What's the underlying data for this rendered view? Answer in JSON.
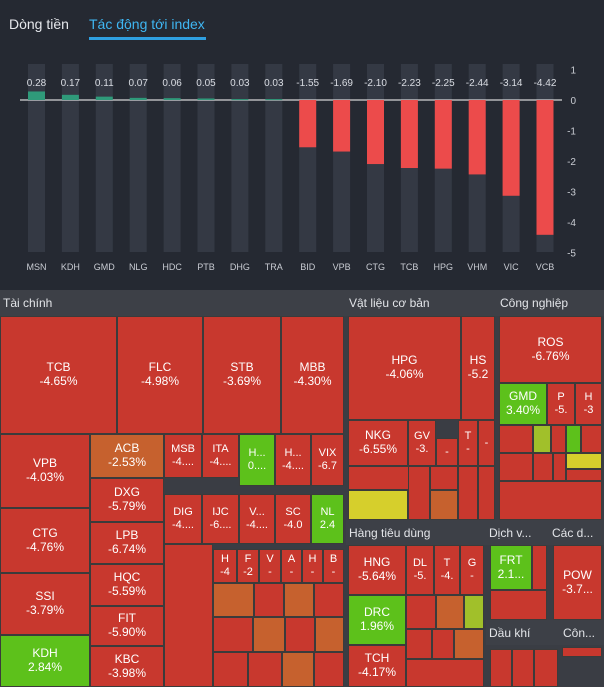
{
  "tabs": [
    {
      "label": "Dòng tiền",
      "active": false
    },
    {
      "label": "Tác động tới index",
      "active": true
    }
  ],
  "chart_data": {
    "type": "bar",
    "title": "Tác động tới index",
    "categories": [
      "MSN",
      "KDH",
      "GMD",
      "NLG",
      "HDC",
      "PTB",
      "DHG",
      "TRA",
      "BID",
      "VPB",
      "CTG",
      "TCB",
      "HPG",
      "VHM",
      "VIC",
      "VCB"
    ],
    "values": [
      0.28,
      0.17,
      0.11,
      0.07,
      0.06,
      0.05,
      0.03,
      0.03,
      -1.55,
      -1.69,
      -2.1,
      -2.23,
      -2.25,
      -2.44,
      -3.14,
      -4.42
    ],
    "value_labels": [
      "0.28",
      "0.17",
      "0.11",
      "0.07",
      "0.06",
      "0.05",
      "0.03",
      "0.03",
      "-1.55",
      "-1.69",
      "-2.10",
      "-2.23",
      "-2.25",
      "-2.44",
      "-3.14",
      "-4.42"
    ],
    "ylim": [
      -5,
      1
    ],
    "yticks": [
      1,
      0,
      -1,
      -2,
      -3,
      -4,
      -5
    ],
    "colors": {
      "positive": "#2f9a7a",
      "negative": "#ec4b4b",
      "track": "#343944"
    }
  },
  "treemap": {
    "sectors": {
      "finance": "Tài chính",
      "materials": "Vật liệu cơ bản",
      "industrial": "Công nghiệp",
      "consumer": "Hàng tiêu dùng",
      "services": "Dịch v...",
      "other": "Các d...",
      "oil": "Dầu khí",
      "tech": "Côn..."
    },
    "tickers": {
      "TCB": {
        "sym": "TCB",
        "chg": "-4.65%"
      },
      "FLC": {
        "sym": "FLC",
        "chg": "-4.98%"
      },
      "STB": {
        "sym": "STB",
        "chg": "-3.69%"
      },
      "MBB": {
        "sym": "MBB",
        "chg": "-4.30%"
      },
      "VPB": {
        "sym": "VPB",
        "chg": "-4.03%"
      },
      "ACB": {
        "sym": "ACB",
        "chg": "-2.53%"
      },
      "DXG": {
        "sym": "DXG",
        "chg": "-5.79%"
      },
      "LPB": {
        "sym": "LPB",
        "chg": "-6.74%"
      },
      "HQC": {
        "sym": "HQC",
        "chg": "-5.59%"
      },
      "FIT": {
        "sym": "FIT",
        "chg": "-5.90%"
      },
      "KBC": {
        "sym": "KBC",
        "chg": "-3.98%"
      },
      "CTG": {
        "sym": "CTG",
        "chg": "-4.76%"
      },
      "SSI": {
        "sym": "SSI",
        "chg": "-3.79%"
      },
      "KDH": {
        "sym": "KDH",
        "chg": "2.84%"
      },
      "MSB": {
        "sym": "MSB",
        "chg": "-4...."
      },
      "ITA": {
        "sym": "ITA",
        "chg": "-4...."
      },
      "HGREEN": {
        "sym": "H...",
        "chg": "0...."
      },
      "HRED": {
        "sym": "H...",
        "chg": "-4...."
      },
      "VIX": {
        "sym": "VIX",
        "chg": "-6.7"
      },
      "DIG": {
        "sym": "DIG",
        "chg": "-4...."
      },
      "IJC": {
        "sym": "IJC",
        "chg": "-6...."
      },
      "VDOT": {
        "sym": "V...",
        "chg": "-4...."
      },
      "SC": {
        "sym": "SC",
        "chg": "-4.0"
      },
      "NL": {
        "sym": "NL",
        "chg": "2.4"
      },
      "H4": {
        "sym": "H",
        "chg": "-4"
      },
      "F": {
        "sym": "F",
        "chg": "-2"
      },
      "V": {
        "sym": "V",
        "chg": "-"
      },
      "A": {
        "sym": "A",
        "chg": "-"
      },
      "H": {
        "sym": "H",
        "chg": "-"
      },
      "B": {
        "sym": "B",
        "chg": "-"
      },
      "HPG": {
        "sym": "HPG",
        "chg": "-4.06%"
      },
      "HS": {
        "sym": "HS",
        "chg": "-5.2"
      },
      "NKG": {
        "sym": "NKG",
        "chg": "-6.55%"
      },
      "GV": {
        "sym": "GV",
        "chg": "-3."
      },
      "DASH": {
        "sym": "-",
        "chg": ""
      },
      "T": {
        "sym": "T",
        "chg": "-"
      },
      "DASH2": {
        "sym": "-",
        "chg": ""
      },
      "ROS": {
        "sym": "ROS",
        "chg": "-6.76%"
      },
      "GMD": {
        "sym": "GMD",
        "chg": "3.40%"
      },
      "P": {
        "sym": "P",
        "chg": "-5."
      },
      "H3": {
        "sym": "H",
        "chg": "-3"
      },
      "HNG": {
        "sym": "HNG",
        "chg": "-5.64%"
      },
      "DL": {
        "sym": "DL",
        "chg": "-5."
      },
      "T4": {
        "sym": "T",
        "chg": "-4."
      },
      "G": {
        "sym": "G",
        "chg": "-"
      },
      "DRC": {
        "sym": "DRC",
        "chg": "1.96%"
      },
      "TCH": {
        "sym": "TCH",
        "chg": "-4.17%"
      },
      "FRT": {
        "sym": "FRT",
        "chg": "2.1..."
      },
      "POW": {
        "sym": "POW",
        "chg": "-3.7..."
      }
    }
  }
}
